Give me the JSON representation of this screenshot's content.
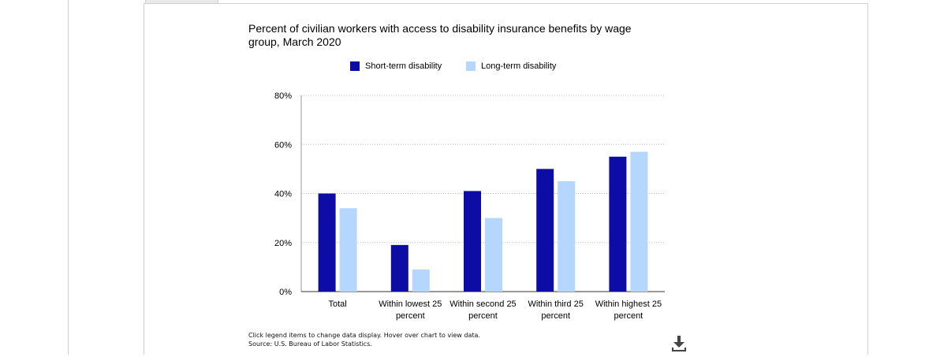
{
  "page": {
    "download_icon": "download-icon"
  },
  "chart_data": {
    "type": "bar",
    "title": "Percent of civilian workers with access to disability insurance benefits by wage group, March 2020",
    "categories": [
      [
        "Total"
      ],
      [
        "Within lowest 25",
        "percent"
      ],
      [
        "Within second 25",
        "percent"
      ],
      [
        "Within third 25",
        "percent"
      ],
      [
        "Within highest 25",
        "percent"
      ]
    ],
    "series": [
      {
        "name": "Short-term disability",
        "color": "#0d0da6",
        "values": [
          40,
          19,
          41,
          50,
          55
        ]
      },
      {
        "name": "Long-term disability",
        "color": "#b5d6fe",
        "values": [
          34,
          9,
          30,
          45,
          57
        ]
      }
    ],
    "y_ticks": [
      "0%",
      "20%",
      "40%",
      "60%",
      "80%"
    ],
    "ylim": [
      0,
      80
    ],
    "grid": true,
    "legend_position": "top-center",
    "notes": [
      "Click legend items to change data display. Hover over chart to view data.",
      "Source: U.S. Bureau of Labor Statistics."
    ]
  }
}
